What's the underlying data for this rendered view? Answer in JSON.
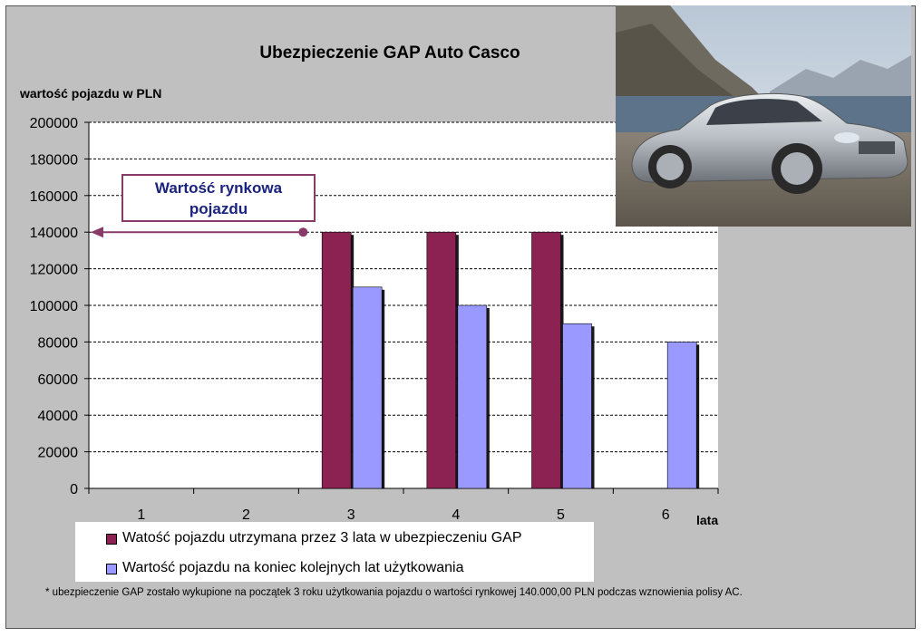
{
  "chart_data": {
    "type": "bar",
    "title": "Ubezpieczenie GAP Auto Casco",
    "ylabel": "wartość pojazdu w PLN",
    "xlabel": "lata",
    "categories": [
      "1",
      "2",
      "3",
      "4",
      "5",
      "6"
    ],
    "ylim": [
      0,
      200000
    ],
    "yticks": [
      "0",
      "20000",
      "40000",
      "60000",
      "80000",
      "100000",
      "120000",
      "140000",
      "160000",
      "180000",
      "200000"
    ],
    "series": [
      {
        "name": "Watość pojazdu utrzymana przez 3 lata w ubezpieczeniu GAP",
        "color": "#8b2252",
        "values": [
          null,
          null,
          140000,
          140000,
          140000,
          null
        ]
      },
      {
        "name": "Wartość pojazdu na koniec kolejnych lat użytkowania",
        "color": "#9999ff",
        "values": [
          null,
          null,
          110000,
          100000,
          90000,
          80000
        ]
      }
    ],
    "grid": true,
    "legend_position": "bottom-left",
    "annotation": {
      "lines": [
        "Wartość rynkowa",
        "pojazdu"
      ],
      "value": 140000
    },
    "footnote": "* ubezpieczenie GAP zostało wykupione na początek 3 roku użytkowania pojazdu o wartości rynkowej 140.000,00 PLN podczas wznowienia polisy AC."
  },
  "colors": {
    "background": "#c0c0c0",
    "plot_area": "#ffffff",
    "series_gap": "#8b2252",
    "series_value": "#9999ff",
    "callout_border": "#8a3a68",
    "callout_text": "#1a237e"
  },
  "photo": {
    "icon": "car-photo"
  }
}
